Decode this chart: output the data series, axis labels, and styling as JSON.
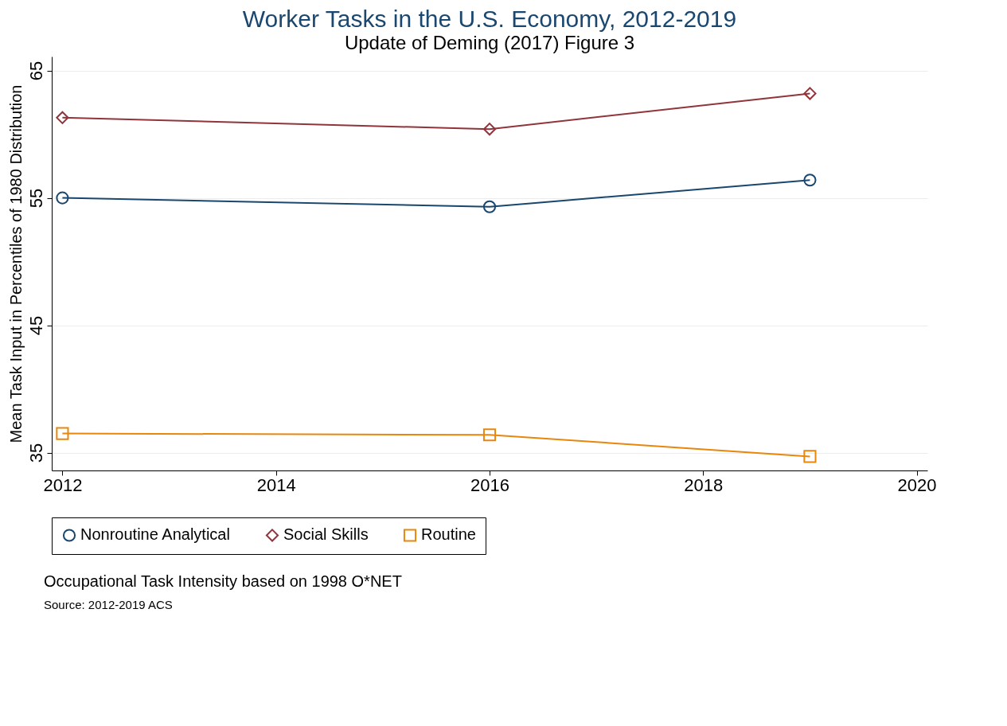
{
  "chart_data": {
    "type": "line",
    "title": "Worker Tasks in the U.S. Economy, 2012-2019",
    "subtitle": "Update of Deming (2017) Figure 3",
    "ylabel": "Mean Task Input in Percentiles of 1980 Distribution",
    "x": [
      2012,
      2016,
      2019
    ],
    "series": [
      {
        "name": "Nonroutine Analytical",
        "color": "#1a476f",
        "marker": "circle",
        "values": [
          55.0,
          54.3,
          56.4
        ]
      },
      {
        "name": "Social Skills",
        "color": "#90353b",
        "marker": "diamond",
        "values": [
          61.3,
          60.4,
          63.2
        ]
      },
      {
        "name": "Routine",
        "color": "#e8870c",
        "marker": "square",
        "values": [
          36.5,
          36.4,
          34.7
        ]
      }
    ],
    "xlim": [
      2011.9,
      2020.1
    ],
    "xticks": [
      2012,
      2014,
      2016,
      2018,
      2020
    ],
    "ylim": [
      33.6,
      66.1
    ],
    "yticks": [
      35,
      45,
      55,
      65
    ],
    "grid": "y",
    "legend": "bottom",
    "annotations": [
      "Occupational Task Intensity based on 1998 O*NET",
      "Source: 2012-2019 ACS"
    ]
  }
}
